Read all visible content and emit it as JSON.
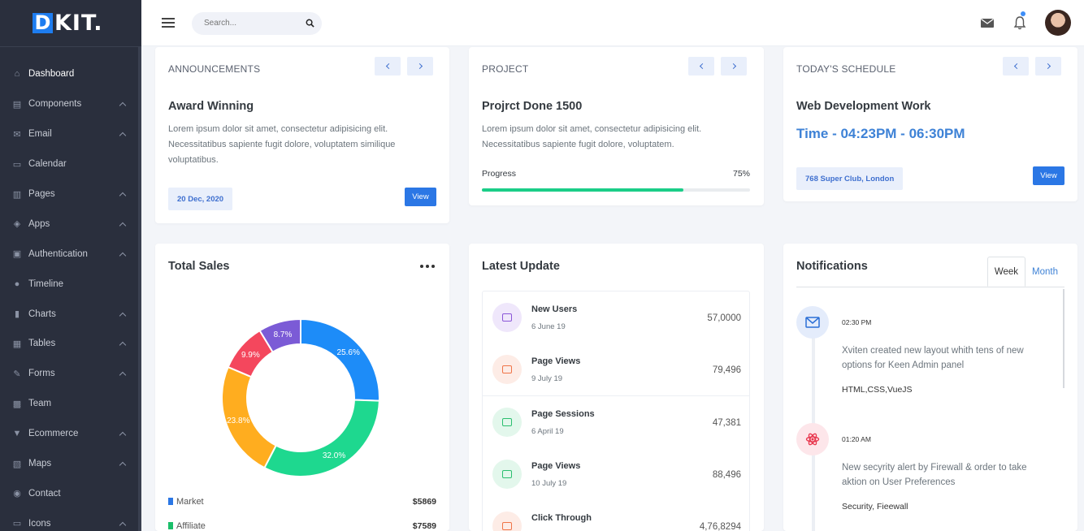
{
  "sidebar": {
    "logo_letter": "D",
    "logo_rest": "KIT.",
    "items": [
      {
        "label": "Dashboard",
        "icon": "bank-icon",
        "active": true,
        "chevron": false
      },
      {
        "label": "Components",
        "icon": "layers-icon",
        "chevron": true
      },
      {
        "label": "Email",
        "icon": "mail-icon",
        "chevron": true
      },
      {
        "label": "Calendar",
        "icon": "calendar-icon",
        "chevron": false
      },
      {
        "label": "Pages",
        "icon": "file-icon",
        "chevron": true
      },
      {
        "label": "Apps",
        "icon": "cube-icon",
        "chevron": true
      },
      {
        "label": "Authentication",
        "icon": "lock-icon",
        "chevron": true
      },
      {
        "label": "Timeline",
        "icon": "pin-icon",
        "chevron": false
      },
      {
        "label": "Charts",
        "icon": "bar-chart-icon",
        "chevron": true
      },
      {
        "label": "Tables",
        "icon": "table-icon",
        "chevron": true
      },
      {
        "label": "Forms",
        "icon": "edit-icon",
        "chevron": true
      },
      {
        "label": "Team",
        "icon": "id-card-icon",
        "chevron": false
      },
      {
        "label": "Ecommerce",
        "icon": "cart-icon",
        "chevron": true
      },
      {
        "label": "Maps",
        "icon": "map-icon",
        "chevron": true
      },
      {
        "label": "Contact",
        "icon": "user-circle-icon",
        "chevron": false
      },
      {
        "label": "Icons",
        "icon": "monitor-icon",
        "chevron": true
      }
    ]
  },
  "header": {
    "search_placeholder": "Search..."
  },
  "announcements": {
    "heading": "ANNOUNCEMENTS",
    "title": "Award Winning",
    "text": "Lorem ipsum dolor sit amet, consectetur adipisicing elit. Necessitatibus sapiente fugit dolore, voluptatem similique voluptatibus.",
    "date": "20 Dec, 2020",
    "button": "View"
  },
  "project": {
    "heading": "PROJECT",
    "title": "Projrct Done 1500",
    "text": "Lorem ipsum dolor sit amet, consectetur adipisicing elit. Necessitatibus sapiente fugit dolore, voluptatem.",
    "progress_label": "Progress",
    "progress_text": "75%",
    "progress_value": 0.75
  },
  "schedule": {
    "heading": "TODAY'S SCHEDULE",
    "title": "Web Development Work",
    "time": "Time - 04:23PM - 06:30PM",
    "location": "768 Super Club, London",
    "button": "View"
  },
  "sales": {
    "title": "Total Sales",
    "legend": [
      {
        "name": "Market",
        "value": "$5869",
        "color": "#2b77e5"
      },
      {
        "name": "Affiliate",
        "value": "$7589",
        "color": "#1bbf6a"
      }
    ]
  },
  "chart_data": {
    "type": "pie",
    "donut": true,
    "labels": [
      "25.6%",
      "32.0%",
      "23.8%",
      "9.9%",
      "8.7%"
    ],
    "values": [
      25.6,
      32.0,
      23.8,
      9.9,
      8.7
    ],
    "colors": [
      "#1d8cf8",
      "#1ed88f",
      "#ffad1f",
      "#f4475d",
      "#7b5bd6"
    ]
  },
  "updates": {
    "title": "Latest Update",
    "items": [
      {
        "name": "New Users",
        "date": "6 June 19",
        "value": "57,0000",
        "bg": "#efe7fb",
        "fg": "#8a56d8"
      },
      {
        "name": "Page Views",
        "date": "9 July 19",
        "value": "79,496",
        "bg": "#fdece6",
        "fg": "#f07447"
      },
      {
        "name": "Page Sessions",
        "date": "6 April 19",
        "value": "47,381",
        "bg": "#e3f7ec",
        "fg": "#2bbf6f"
      },
      {
        "name": "Page Views",
        "date": "10 July 19",
        "value": "88,496",
        "bg": "#e3f7ec",
        "fg": "#2bbf6f"
      },
      {
        "name": "Click Through",
        "date": "",
        "value": "4,76,8294",
        "bg": "#fdece6",
        "fg": "#f07447"
      }
    ]
  },
  "notifications": {
    "title": "Notifications",
    "tab_week": "Week",
    "tab_month": "Month",
    "items": [
      {
        "time": "02:30 PM",
        "text": "Xviten created new layout whith tens of new options for Keen Admin panel",
        "tags": "HTML,CSS,VueJS"
      },
      {
        "time": "01:20 AM",
        "text": "New secyrity alert by Firewall & order to take aktion on User Preferences",
        "tags": "Security, Fieewall"
      }
    ]
  }
}
